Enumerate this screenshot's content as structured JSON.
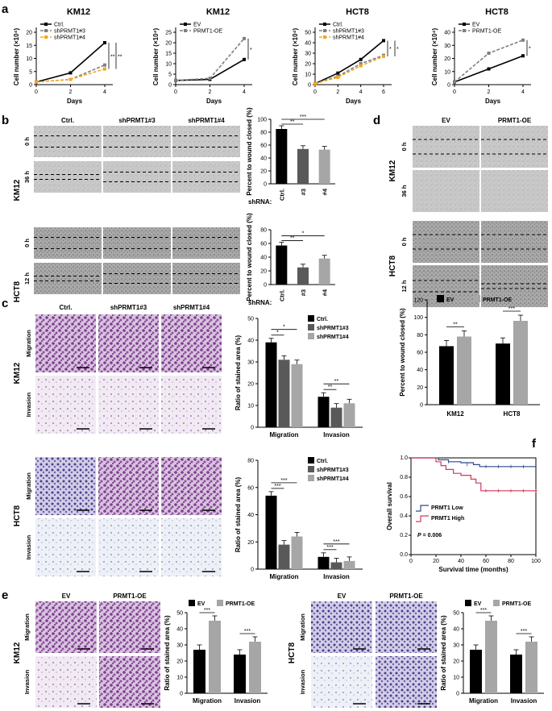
{
  "panel_labels": {
    "a": "a",
    "b": "b",
    "c": "c",
    "d": "d",
    "e": "e",
    "f": "f"
  },
  "colors": {
    "black": "#000000",
    "gray": "#7f7f7f",
    "light": "#a6a6a6",
    "orange": "#f5a623",
    "dark": "#595959",
    "low": "#2e4a8a",
    "high": "#d6365a",
    "stain": "#7b3f8c"
  },
  "panel_a": {
    "ylabel": "Cell number (×10⁴)",
    "xlabel": "Days",
    "charts": [
      {
        "title": "KM12",
        "x": [
          0,
          2,
          4
        ],
        "xticks": [
          "0",
          "2",
          "4"
        ],
        "ylim": [
          0,
          20
        ],
        "yticks": [
          "0",
          "5",
          "10",
          "15",
          "20"
        ],
        "series": [
          {
            "name": "Ctrl.",
            "values": [
              1,
              4.5,
              16
            ]
          },
          {
            "name": "shPRMT1#3",
            "values": [
              1,
              2,
              7.5
            ]
          },
          {
            "name": "shPRMT1#4",
            "values": [
              1,
              2,
              6
            ]
          }
        ],
        "sig": [
          "**",
          "**"
        ]
      },
      {
        "title": "KM12",
        "x": [
          0,
          2,
          4
        ],
        "xticks": [
          "0",
          "2",
          "4"
        ],
        "ylim": [
          0,
          25
        ],
        "yticks": [
          "0",
          "5",
          "10",
          "15",
          "20",
          "25"
        ],
        "series": [
          {
            "name": "EV",
            "values": [
              2,
              2.5,
              12
            ]
          },
          {
            "name": "PRMT1-OE",
            "values": [
              2,
              3,
              22
            ]
          }
        ],
        "sig": [
          "*"
        ]
      },
      {
        "title": "HCT8",
        "x": [
          0,
          2,
          4,
          6
        ],
        "xticks": [
          "0",
          "2",
          "4",
          "6"
        ],
        "ylim": [
          0,
          50
        ],
        "yticks": [
          "0",
          "10",
          "20",
          "30",
          "40",
          "50"
        ],
        "series": [
          {
            "name": "Ctrl.",
            "values": [
              1,
              11,
              24,
              42
            ]
          },
          {
            "name": "shPRMT1#3",
            "values": [
              1,
              8,
              20,
              28
            ]
          },
          {
            "name": "shPRMT1#4",
            "values": [
              1,
              7,
              18,
              27
            ]
          }
        ],
        "sig": [
          "*",
          "*"
        ]
      },
      {
        "title": "HCT8",
        "x": [
          0,
          2,
          4
        ],
        "xticks": [
          "0",
          "2",
          "4"
        ],
        "ylim": [
          0,
          40
        ],
        "yticks": [
          "0",
          "10",
          "20",
          "30",
          "40"
        ],
        "series": [
          {
            "name": "EV",
            "values": [
              2,
              12,
              22
            ]
          },
          {
            "name": "PRMT1-OE",
            "values": [
              2,
              24,
              34
            ]
          }
        ],
        "sig": [
          "*"
        ]
      }
    ]
  },
  "panel_b": {
    "columns": [
      "Ctrl.",
      "shPRMT1#3",
      "shPRMT1#4"
    ],
    "rows": [
      {
        "cell": "KM12",
        "times": [
          "0 h",
          "36 h"
        ]
      },
      {
        "cell": "HCT8",
        "times": [
          "0 h",
          "12 h"
        ]
      }
    ],
    "ylabel": "Percent to wound closed (%)",
    "shrna": "shRNA:",
    "charts": [
      {
        "categories": [
          "Ctrl.",
          "#3",
          "#4"
        ],
        "values": [
          85,
          54,
          53
        ],
        "ylim": [
          0,
          100
        ],
        "yticks": [
          "0",
          "20",
          "40",
          "60",
          "80",
          "100"
        ],
        "sig": [
          "***",
          "**"
        ]
      },
      {
        "categories": [
          "Ctrl.",
          "#3",
          "#4"
        ],
        "values": [
          57,
          25,
          38
        ],
        "ylim": [
          0,
          80
        ],
        "yticks": [
          "0",
          "20",
          "40",
          "60",
          "80"
        ],
        "sig": [
          "*",
          "**"
        ]
      }
    ]
  },
  "panel_c": {
    "columns": [
      "Ctrl.",
      "shPRMT1#3",
      "shPRMT1#4"
    ],
    "rows": [
      {
        "cell": "KM12",
        "assays": [
          "Migration",
          "Invasion"
        ]
      },
      {
        "cell": "HCT8",
        "assays": [
          "Migration",
          "Invasion"
        ]
      }
    ],
    "ylabel": "Ratio of stained area (%)",
    "legend": [
      "Ctrl.",
      "shPRMT1#3",
      "shPRMT1#4"
    ],
    "charts": [
      {
        "categories": [
          "Migration",
          "Invasion"
        ],
        "series": [
          {
            "name": "Ctrl.",
            "values": [
              39,
              14
            ]
          },
          {
            "name": "shPRMT1#3",
            "values": [
              31,
              9
            ]
          },
          {
            "name": "shPRMT1#4",
            "values": [
              29,
              11
            ]
          }
        ],
        "ylim": [
          0,
          50
        ],
        "yticks": [
          "0",
          "10",
          "20",
          "30",
          "40",
          "50"
        ],
        "sig": [
          "*",
          "*",
          "**",
          "**"
        ]
      },
      {
        "categories": [
          "Migration",
          "Invasion"
        ],
        "series": [
          {
            "name": "Ctrl.",
            "values": [
              54,
              9
            ]
          },
          {
            "name": "shPRMT1#3",
            "values": [
              18,
              5
            ]
          },
          {
            "name": "shPRMT1#4",
            "values": [
              24,
              6
            ]
          }
        ],
        "ylim": [
          0,
          80
        ],
        "yticks": [
          "0",
          "20",
          "40",
          "60",
          "80"
        ],
        "sig": [
          "***",
          "***",
          "***",
          "***"
        ]
      }
    ]
  },
  "panel_d": {
    "columns": [
      "EV",
      "PRMT1-OE"
    ],
    "rows": [
      {
        "cell": "KM12",
        "times": [
          "0 h",
          "36 h"
        ]
      },
      {
        "cell": "HCT8",
        "times": [
          "0 h",
          "12 h"
        ]
      }
    ],
    "ylabel": "Percent to wound closed (%)",
    "legend": [
      "EV",
      "PRMT1-OE"
    ],
    "chart": {
      "categories": [
        "KM12",
        "HCT8"
      ],
      "series": [
        {
          "name": "EV",
          "values": [
            67,
            70
          ]
        },
        {
          "name": "PRMT1-OE",
          "values": [
            78,
            96
          ]
        }
      ],
      "ylim": [
        0,
        120
      ],
      "yticks": [
        "0",
        "20",
        "40",
        "60",
        "80",
        "100",
        "120"
      ],
      "sig": [
        "**",
        "***"
      ]
    }
  },
  "panel_f": {
    "ylabel": "Overall survival",
    "xlabel": "Survival time (months)",
    "xticks": [
      "0",
      "20",
      "40",
      "60",
      "80",
      "100"
    ],
    "yticks": [
      "0.0",
      "0.2",
      "0.4",
      "0.6",
      "0.8",
      "1.0"
    ],
    "legend": [
      "PRMT1 Low",
      "PRMT1 High"
    ],
    "pvalue_label": "P",
    "pvalue_text": " = 0.006",
    "low_curve": [
      [
        0,
        1.0
      ],
      [
        18,
        1.0
      ],
      [
        22,
        0.98
      ],
      [
        30,
        0.96
      ],
      [
        40,
        0.95
      ],
      [
        50,
        0.93
      ],
      [
        55,
        0.91
      ],
      [
        100,
        0.91
      ]
    ],
    "high_curve": [
      [
        0,
        1.0
      ],
      [
        20,
        0.96
      ],
      [
        24,
        0.92
      ],
      [
        28,
        0.88
      ],
      [
        34,
        0.84
      ],
      [
        40,
        0.82
      ],
      [
        48,
        0.78
      ],
      [
        52,
        0.74
      ],
      [
        56,
        0.66
      ],
      [
        100,
        0.66
      ]
    ]
  },
  "panel_e": {
    "columns": [
      "EV",
      "PRMT1-OE"
    ],
    "assays": [
      "Migration",
      "Invasion"
    ],
    "cells": [
      "KM12",
      "HCT8"
    ],
    "ylabel": "Ratio of stained area (%)",
    "legend": [
      "EV",
      "PRMT1-OE"
    ],
    "charts": [
      {
        "categories": [
          "Migration",
          "Invasion"
        ],
        "series": [
          {
            "name": "EV",
            "values": [
              27,
              24
            ]
          },
          {
            "name": "PRMT1-OE",
            "values": [
              45,
              32
            ]
          }
        ],
        "ylim": [
          0,
          50
        ],
        "yticks": [
          "0",
          "10",
          "20",
          "30",
          "40",
          "50"
        ],
        "sig": [
          "***",
          "***"
        ]
      },
      {
        "categories": [
          "Migration",
          "Invasion"
        ],
        "series": [
          {
            "name": "EV",
            "values": [
              27,
              24
            ]
          },
          {
            "name": "PRMT1-OE",
            "values": [
              45,
              32
            ]
          }
        ],
        "ylim": [
          0,
          50
        ],
        "yticks": [
          "0",
          "10",
          "20",
          "30",
          "40",
          "50"
        ],
        "sig": [
          "***",
          "***"
        ]
      }
    ]
  }
}
